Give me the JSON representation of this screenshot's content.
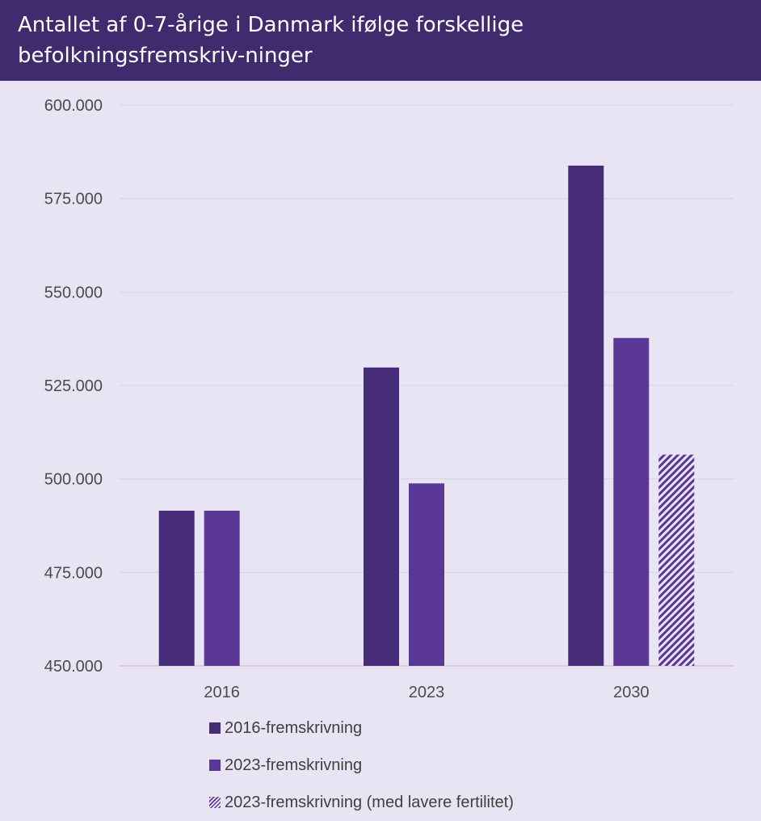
{
  "title": "Antallet af 0-7-årige i Danmark ifølge forskellige befolkningsfremskriv-ninger",
  "colors": {
    "header_bg": "#402b6e",
    "plot_bg": "#e9e4f3",
    "series_2016": "#462b78",
    "series_2023": "#5b3795",
    "series_low_fertility": "#5b3795"
  },
  "chart_data": {
    "type": "bar",
    "title": "Antallet af 0-7-årige i Danmark ifølge forskellige befolkningsfremskriv-ninger",
    "xlabel": "",
    "ylabel": "",
    "categories": [
      "2016",
      "2023",
      "2030"
    ],
    "series": [
      {
        "name": "2016-fremskrivning",
        "values": [
          491500,
          529800,
          583800
        ],
        "color": "#462b78",
        "pattern": "solid"
      },
      {
        "name": "2023-fremskrivning",
        "values": [
          491500,
          498800,
          537700
        ],
        "color": "#5b3795",
        "pattern": "solid"
      },
      {
        "name": "2023-fremskrivning (med lavere fertilitet)",
        "values": [
          null,
          null,
          506500
        ],
        "color": "#5b3795",
        "pattern": "diagonal-hatch"
      }
    ],
    "ylim": [
      450000,
      600000
    ],
    "yticks": [
      450000,
      475000,
      500000,
      525000,
      550000,
      575000,
      600000
    ],
    "ytick_labels": [
      "450.000",
      "475.000",
      "500.000",
      "525.000",
      "550.000",
      "575.000",
      "600.000"
    ],
    "grid": true,
    "legend_position": "bottom"
  }
}
